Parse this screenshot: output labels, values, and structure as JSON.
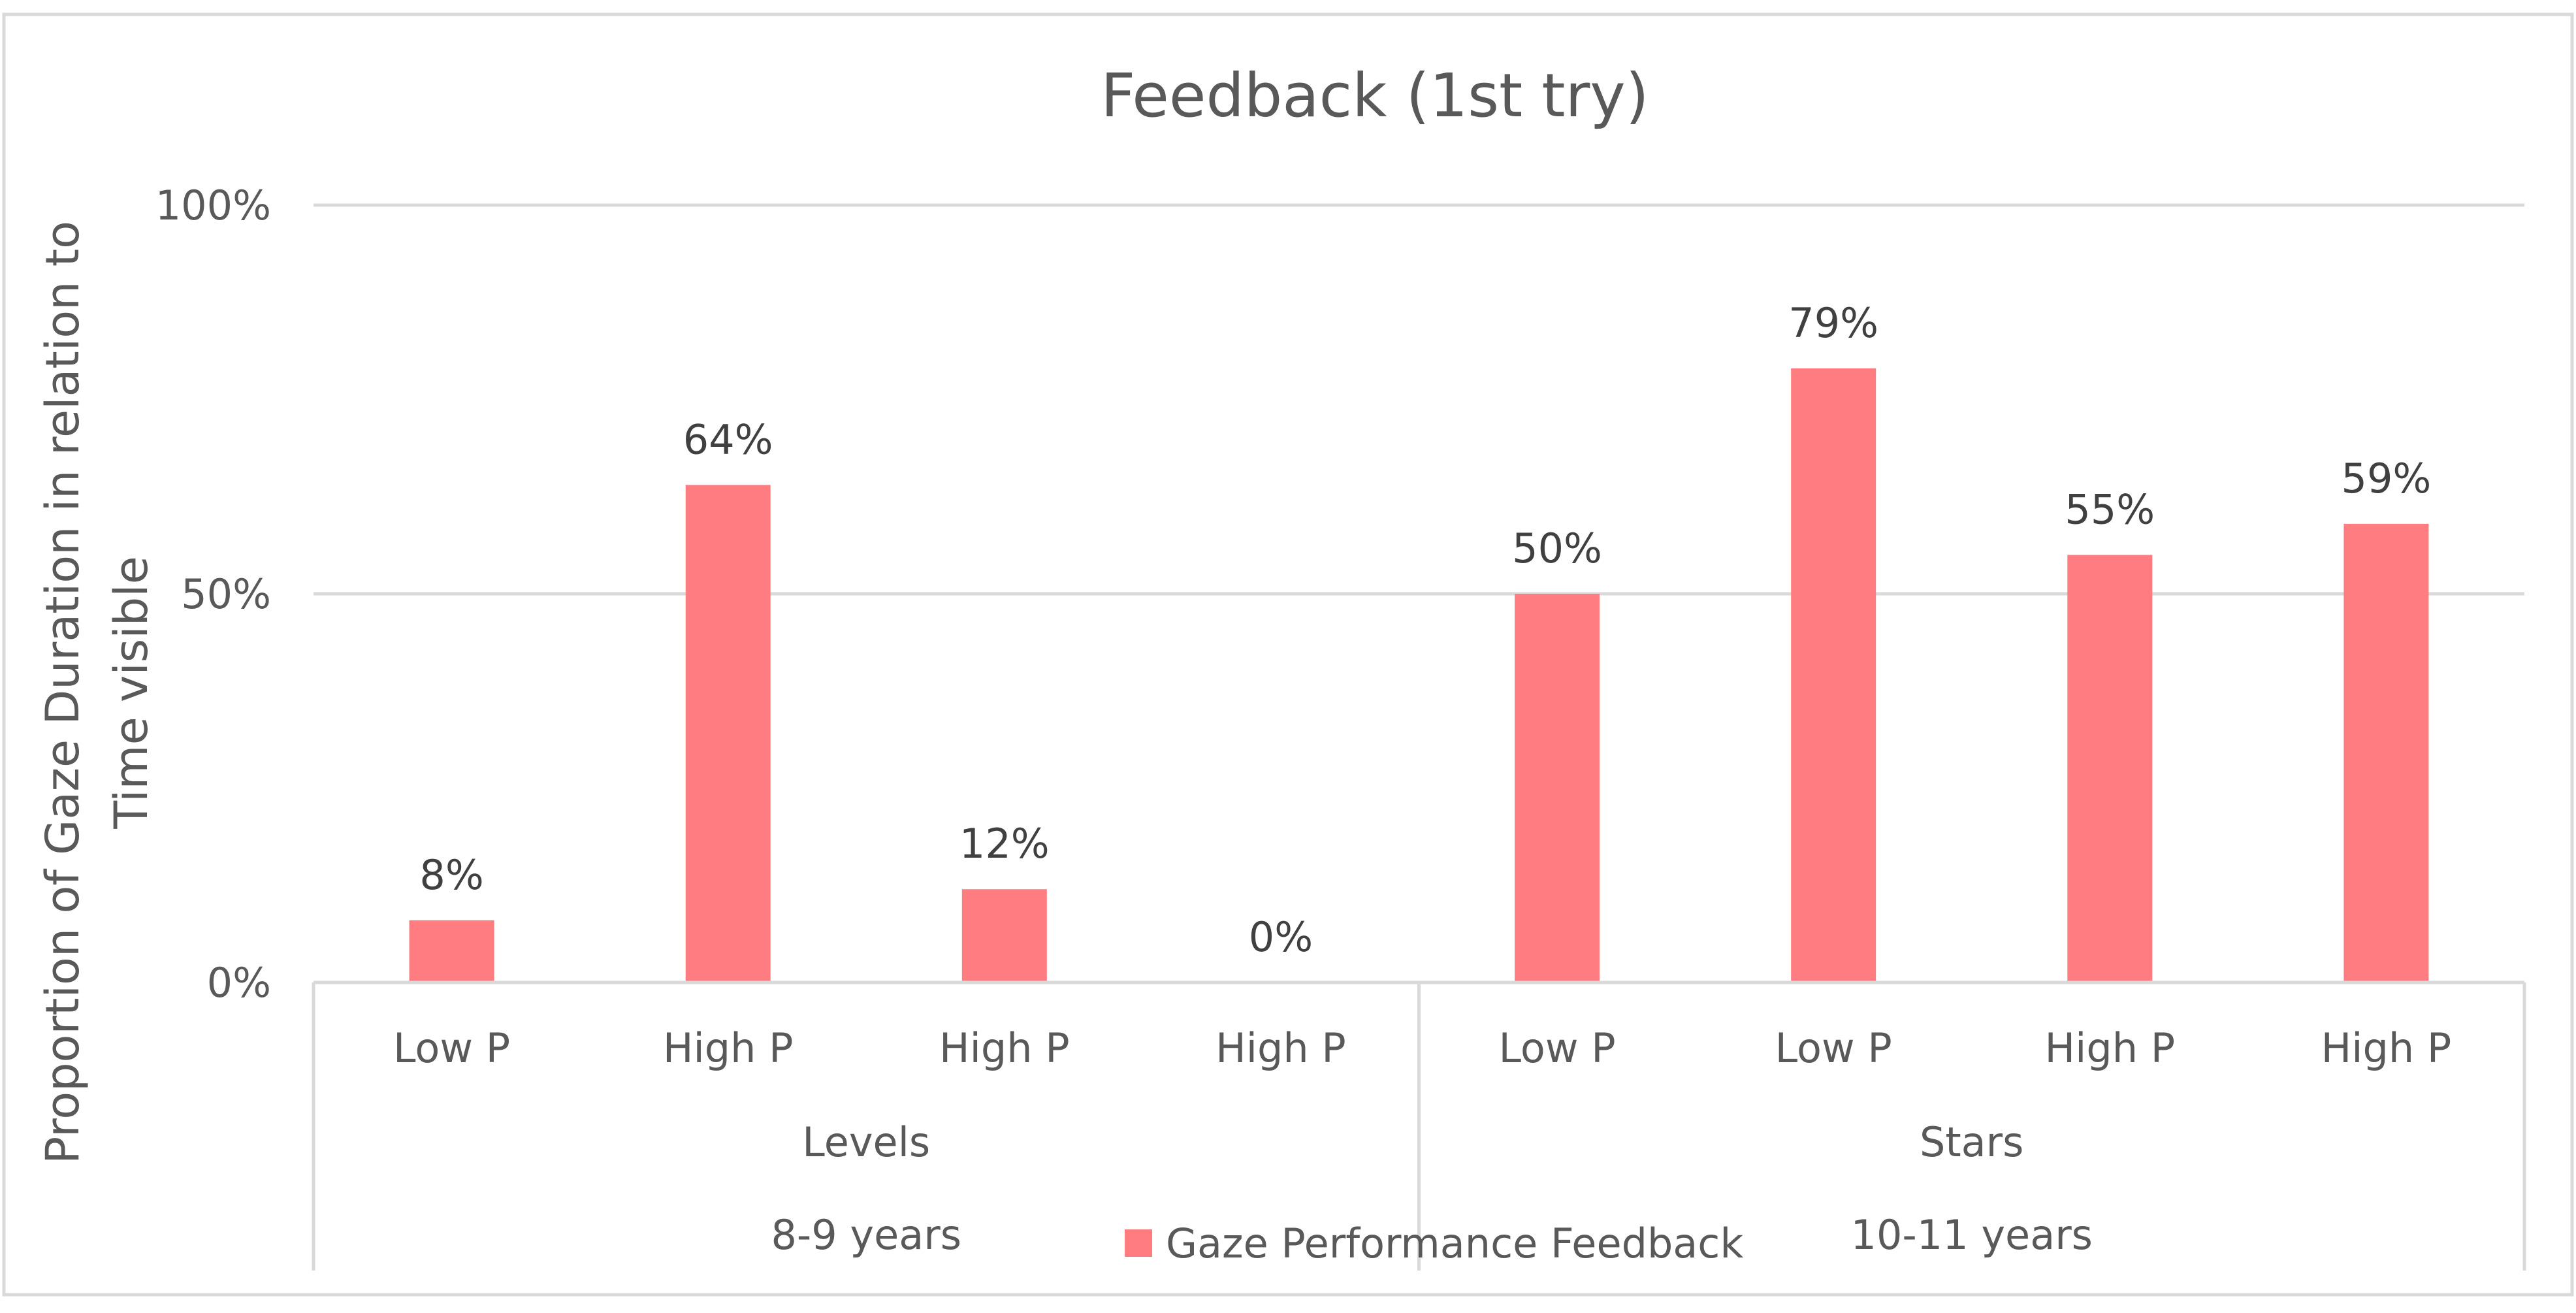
{
  "chart_data": {
    "type": "bar",
    "title": "Feedback  (1st try)",
    "ylabel_lines": [
      "Proportion of Gaze Duration  in relation to",
      "Time visible"
    ],
    "ylim": [
      0,
      100
    ],
    "yticks": [
      {
        "value": 0,
        "label": "0%"
      },
      {
        "value": 50,
        "label": "50%"
      },
      {
        "value": 100,
        "label": "100%"
      }
    ],
    "grid": true,
    "categories": [
      "Low P",
      "High P",
      "High P",
      "High P",
      "Low P",
      "Low P",
      "High P",
      "High P"
    ],
    "groups": [
      {
        "label": "Levels",
        "start": 0,
        "end": 3
      },
      {
        "label": "Stars",
        "start": 4,
        "end": 7
      }
    ],
    "age_groups": [
      {
        "label": "8-9 years",
        "start": 0,
        "end": 3
      },
      {
        "label": "10-11 years",
        "start": 4,
        "end": 7
      }
    ],
    "series": [
      {
        "name": "Gaze Performance Feedback",
        "color": "#ff7c80",
        "values": [
          8,
          64,
          12,
          0,
          50,
          79,
          55,
          59
        ],
        "labels": [
          "8%",
          "64%",
          "12%",
          "0%",
          "50%",
          "79%",
          "55%",
          "59%"
        ]
      }
    ],
    "legend_position": "bottom"
  }
}
